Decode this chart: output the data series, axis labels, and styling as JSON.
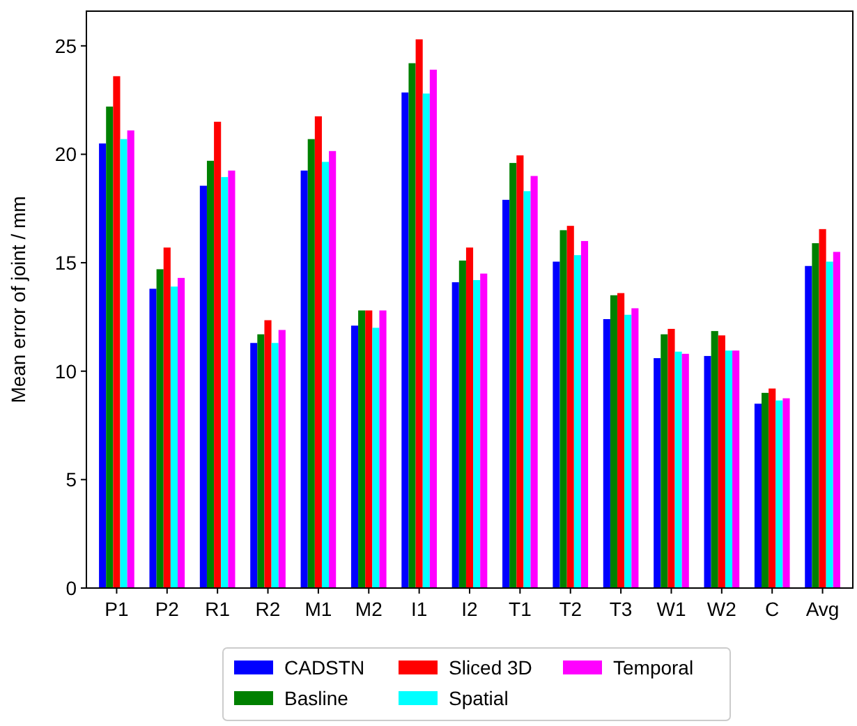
{
  "chart_data": {
    "type": "bar",
    "ylabel": "Mean error of joint / mm",
    "categories": [
      "P1",
      "P2",
      "R1",
      "R2",
      "M1",
      "M2",
      "I1",
      "I2",
      "T1",
      "T2",
      "T3",
      "W1",
      "W2",
      "C",
      "Avg"
    ],
    "series": [
      {
        "name": "CADSTN",
        "color": "#0000ff",
        "values": [
          20.5,
          13.8,
          18.55,
          11.3,
          19.25,
          12.1,
          22.85,
          14.1,
          17.9,
          15.05,
          12.4,
          10.6,
          10.7,
          8.5,
          14.85
        ]
      },
      {
        "name": "Basline",
        "color": "#008000",
        "values": [
          22.2,
          14.7,
          19.7,
          11.7,
          20.7,
          12.8,
          24.2,
          15.1,
          19.6,
          16.5,
          13.5,
          11.7,
          11.85,
          9.0,
          15.9
        ]
      },
      {
        "name": "Sliced 3D",
        "color": "#ff0000",
        "values": [
          23.6,
          15.7,
          21.5,
          12.35,
          21.75,
          12.8,
          25.3,
          15.7,
          19.95,
          16.7,
          13.6,
          11.95,
          11.65,
          9.2,
          16.55
        ]
      },
      {
        "name": "Spatial",
        "color": "#00ffff",
        "values": [
          20.7,
          13.9,
          18.95,
          11.3,
          19.65,
          12.0,
          22.8,
          14.2,
          18.3,
          15.35,
          12.6,
          10.9,
          10.95,
          8.65,
          15.05
        ]
      },
      {
        "name": "Temporal",
        "color": "#ff00ff",
        "values": [
          21.1,
          14.3,
          19.25,
          11.9,
          20.15,
          12.8,
          23.9,
          14.5,
          19.0,
          16.0,
          12.9,
          10.8,
          10.95,
          8.75,
          15.5
        ]
      }
    ],
    "ylim": [
      0,
      26.6
    ],
    "yticks": [
      0,
      5,
      10,
      15,
      20,
      25
    ],
    "grid": false,
    "legend": "bottom"
  }
}
